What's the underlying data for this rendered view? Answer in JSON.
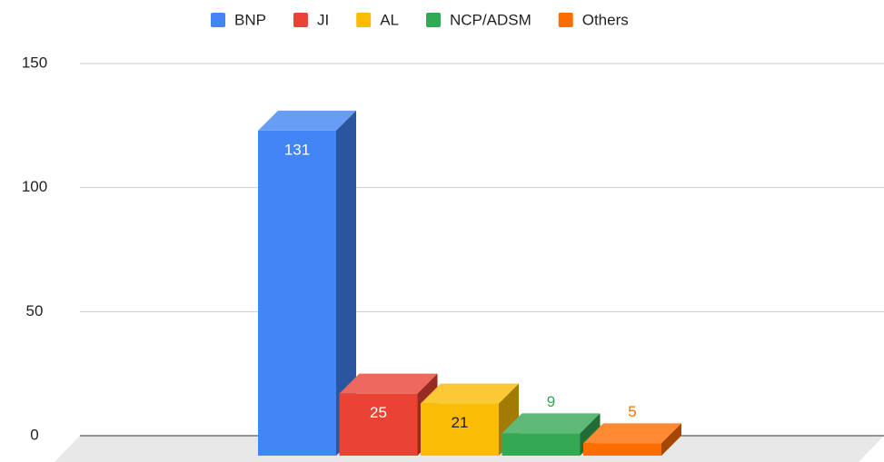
{
  "chart_data": {
    "type": "bar",
    "series": [
      {
        "name": "BNP",
        "color": "#4285f4",
        "values": [
          131
        ]
      },
      {
        "name": "JI",
        "color": "#ea4335",
        "values": [
          25
        ]
      },
      {
        "name": "AL",
        "color": "#fbbc04",
        "values": [
          21
        ]
      },
      {
        "name": "NCP/ADSM",
        "color": "#34a853",
        "values": [
          9
        ]
      },
      {
        "name": "Others",
        "color": "#ff6d01",
        "values": [
          5
        ]
      }
    ],
    "ylim": [
      0,
      150
    ],
    "yticks": [
      0,
      50,
      100,
      150
    ],
    "grid": true,
    "legend": "top"
  }
}
